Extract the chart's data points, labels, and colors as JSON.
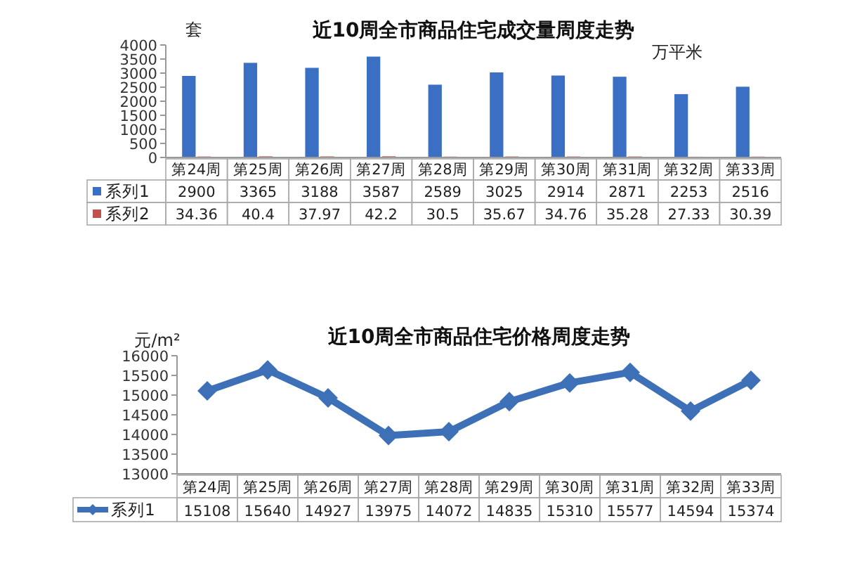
{
  "chart_data": [
    {
      "type": "bar",
      "title": "近10周全市商品住宅成交量周度走势",
      "ylabel": "套",
      "annotations": [
        "万平米"
      ],
      "categories": [
        "第24周",
        "第25周",
        "第26周",
        "第27周",
        "第28周",
        "第29周",
        "第30周",
        "第31周",
        "第32周",
        "第33周"
      ],
      "series": [
        {
          "name": "系列1",
          "color": "#3a6fc4",
          "values": [
            2900,
            3365,
            3188,
            3587,
            2589,
            3025,
            2914,
            2871,
            2253,
            2516
          ]
        },
        {
          "name": "系列2",
          "color": "#c0504d",
          "values": [
            34.36,
            40.4,
            37.97,
            42.2,
            30.5,
            35.67,
            34.76,
            35.28,
            27.33,
            30.39
          ]
        }
      ],
      "ylim": [
        0,
        4000
      ],
      "yticks": [
        0,
        500,
        1000,
        1500,
        2000,
        2500,
        3000,
        3500,
        4000
      ],
      "data_labels": true,
      "legend": "bottom",
      "grid": false
    },
    {
      "type": "line",
      "title": "近10周全市商品住宅价格周度走势",
      "ylabel": "元/m²",
      "categories": [
        "第24周",
        "第25周",
        "第26周",
        "第27周",
        "第28周",
        "第29周",
        "第30周",
        "第31周",
        "第32周",
        "第33周"
      ],
      "series": [
        {
          "name": "系列1",
          "color": "#3e70b8",
          "values": [
            15108,
            15640,
            14927,
            13975,
            14072,
            14835,
            15310,
            15577,
            14594,
            15374
          ]
        }
      ],
      "ylim": [
        13000,
        16000
      ],
      "yticks": [
        13000,
        13500,
        14000,
        14500,
        15000,
        15500,
        16000
      ],
      "marker": "diamond",
      "data_labels": true,
      "legend": "bottom",
      "grid": false
    }
  ]
}
